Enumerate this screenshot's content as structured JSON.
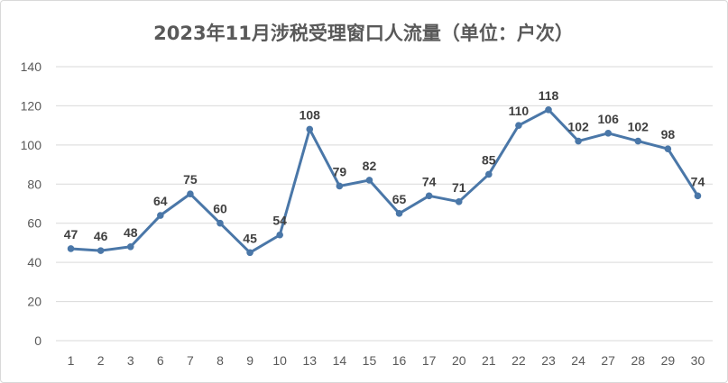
{
  "chart_data": {
    "type": "line",
    "title": "2023年11月涉税受理窗口人流量（单位：户次）",
    "categories": [
      "1",
      "2",
      "3",
      "6",
      "7",
      "8",
      "9",
      "10",
      "13",
      "14",
      "15",
      "16",
      "17",
      "20",
      "21",
      "22",
      "23",
      "24",
      "27",
      "28",
      "29",
      "30"
    ],
    "series": [
      {
        "values": [
          47,
          46,
          48,
          64,
          75,
          60,
          45,
          54,
          108,
          79,
          82,
          65,
          74,
          71,
          85,
          110,
          118,
          102,
          106,
          102,
          98,
          74
        ]
      }
    ],
    "ylim": [
      0,
      140
    ],
    "yticks": [
      0,
      20,
      40,
      60,
      80,
      100,
      120,
      140
    ],
    "grid": true,
    "data_labels": true,
    "colors": {
      "line": "#4a77a8",
      "grid": "#d9d9d9",
      "text": "#595959"
    }
  }
}
